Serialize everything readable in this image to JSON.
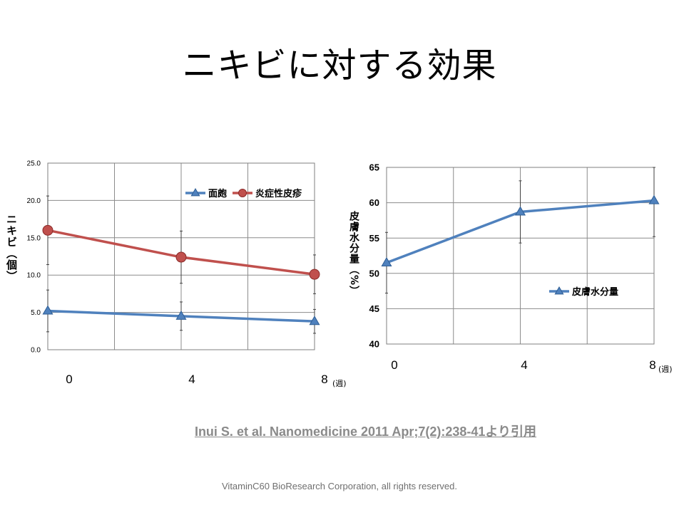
{
  "slide": {
    "title": "ニキビに対する効果",
    "citation": "Inui S. et al.   Nanomedicine   2011 Apr;7(2):238-41より引用",
    "footer": "VitaminC60 BioResearch Corporation, all rights reserved."
  },
  "chart_data": [
    {
      "type": "line",
      "ylabel": "ニキビ（個）",
      "x": [
        "0",
        "4",
        "8"
      ],
      "x_unit_label": "(週)",
      "ylim": [
        0,
        25
      ],
      "yticks": [
        "0.0",
        "5.0",
        "10.0",
        "15.0",
        "20.0",
        "25.0"
      ],
      "grid": true,
      "legend": "top-right",
      "series": [
        {
          "name": "面皰",
          "values": [
            5.2,
            4.5,
            3.8
          ],
          "errors": [
            2.8,
            1.9,
            1.6
          ],
          "color": "#4f81bd",
          "marker": "triangle"
        },
        {
          "name": "炎症性皮疹",
          "values": [
            16.0,
            12.4,
            10.1
          ],
          "errors": [
            4.6,
            3.5,
            2.6
          ],
          "color": "#c0504d",
          "marker": "circle"
        }
      ]
    },
    {
      "type": "line",
      "ylabel": "皮膚水分量（%）",
      "x": [
        "0",
        "4",
        "8"
      ],
      "x_unit_label": "(週)",
      "ylim": [
        40,
        65
      ],
      "yticks": [
        "40",
        "45",
        "50",
        "55",
        "60",
        "65"
      ],
      "grid": true,
      "legend": "right",
      "series": [
        {
          "name": "皮膚水分量",
          "values": [
            51.5,
            58.7,
            60.3
          ],
          "errors": [
            4.3,
            4.4,
            5.1
          ],
          "color": "#4f81bd",
          "marker": "triangle"
        }
      ]
    }
  ]
}
